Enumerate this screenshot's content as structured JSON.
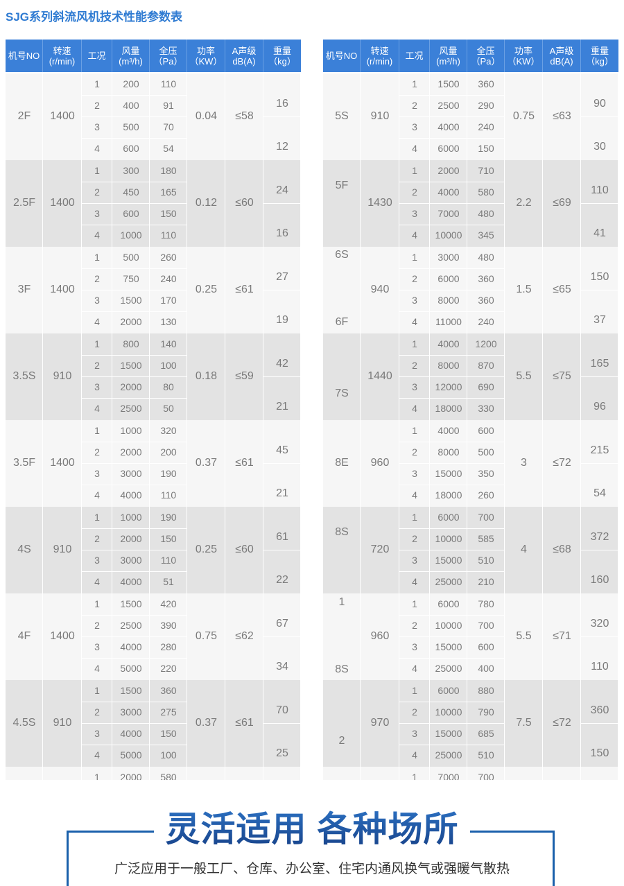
{
  "title": "SJG系列斜流风机技术性能参数表",
  "headers": [
    "机号NO",
    "转速\n(r/min)",
    "工况",
    "风量\n(m³/h)",
    "全压\n（Pa）",
    "功率\n（KW）",
    "A声级\ndB(A)",
    "重量\n（kg）"
  ],
  "colors": {
    "header": "#3b80d8",
    "title": "#2f7bd2",
    "row_light": "#f6f6f6",
    "row_dark": "#e3e3e3",
    "accent": "#1a60ab"
  },
  "left_table": [
    {
      "model": [
        "2F"
      ],
      "rpm": "1400",
      "rows": [
        [
          "1",
          "200",
          "110"
        ],
        [
          "2",
          "400",
          "91"
        ],
        [
          "3",
          "500",
          "70"
        ],
        [
          "4",
          "600",
          "54"
        ]
      ],
      "power": "0.04",
      "noise": "≤58",
      "weight": [
        "16",
        "12"
      ]
    },
    {
      "model": [
        "2.5F"
      ],
      "rpm": "1400",
      "rows": [
        [
          "1",
          "300",
          "180"
        ],
        [
          "2",
          "450",
          "165"
        ],
        [
          "3",
          "600",
          "150"
        ],
        [
          "4",
          "1000",
          "110"
        ]
      ],
      "power": "0.12",
      "noise": "≤60",
      "weight": [
        "24",
        "16"
      ]
    },
    {
      "model": [
        "3F"
      ],
      "rpm": "1400",
      "rows": [
        [
          "1",
          "500",
          "260"
        ],
        [
          "2",
          "750",
          "240"
        ],
        [
          "3",
          "1500",
          "170"
        ],
        [
          "4",
          "2000",
          "130"
        ]
      ],
      "power": "0.25",
      "noise": "≤61",
      "weight": [
        "27",
        "19"
      ]
    },
    {
      "model": [
        "3.5S"
      ],
      "rpm": "910",
      "rows": [
        [
          "1",
          "800",
          "140"
        ],
        [
          "2",
          "1500",
          "100"
        ],
        [
          "3",
          "2000",
          "80"
        ],
        [
          "4",
          "2500",
          "50"
        ]
      ],
      "power": "0.18",
      "noise": "≤59",
      "weight": [
        "42",
        "21"
      ]
    },
    {
      "model": [
        "3.5F"
      ],
      "rpm": "1400",
      "rows": [
        [
          "1",
          "1000",
          "320"
        ],
        [
          "2",
          "2000",
          "200"
        ],
        [
          "3",
          "3000",
          "190"
        ],
        [
          "4",
          "4000",
          "110"
        ]
      ],
      "power": "0.37",
      "noise": "≤61",
      "weight": [
        "45",
        "21"
      ]
    },
    {
      "model": [
        "4S"
      ],
      "rpm": "910",
      "rows": [
        [
          "1",
          "1000",
          "190"
        ],
        [
          "2",
          "2000",
          "150"
        ],
        [
          "3",
          "3000",
          "110"
        ],
        [
          "4",
          "4000",
          "51"
        ]
      ],
      "power": "0.25",
      "noise": "≤60",
      "weight": [
        "61",
        "22"
      ]
    },
    {
      "model": [
        "4F"
      ],
      "rpm": "1400",
      "rows": [
        [
          "1",
          "1500",
          "420"
        ],
        [
          "2",
          "2500",
          "390"
        ],
        [
          "3",
          "4000",
          "280"
        ],
        [
          "4",
          "5000",
          "220"
        ]
      ],
      "power": "0.75",
      "noise": "≤62",
      "weight": [
        "67",
        "34"
      ]
    },
    {
      "model": [
        "4.5S"
      ],
      "rpm": "910",
      "rows": [
        [
          "1",
          "1500",
          "360"
        ],
        [
          "2",
          "3000",
          "275"
        ],
        [
          "3",
          "4000",
          "150"
        ],
        [
          "4",
          "5000",
          "100"
        ]
      ],
      "power": "0.37",
      "noise": "≤61",
      "weight": [
        "70",
        "25"
      ]
    },
    {
      "model": [],
      "rpm": "",
      "rows": [
        [
          "1",
          "2000",
          "580"
        ]
      ],
      "power": "",
      "noise": "",
      "weight": []
    }
  ],
  "right_table": [
    {
      "model": [
        "5S"
      ],
      "rpm": "910",
      "rows": [
        [
          "1",
          "1500",
          "360"
        ],
        [
          "2",
          "2500",
          "290"
        ],
        [
          "3",
          "4000",
          "240"
        ],
        [
          "4",
          "6000",
          "150"
        ]
      ],
      "power": "0.75",
      "noise": "≤63",
      "weight": [
        "90",
        "30"
      ]
    },
    {
      "model": [
        "5F"
      ],
      "rpm": "1430",
      "rows": [
        [
          "1",
          "2000",
          "710"
        ],
        [
          "2",
          "4000",
          "580"
        ],
        [
          "3",
          "7000",
          "480"
        ],
        [
          "4",
          "10000",
          "345"
        ]
      ],
      "power": "2.2",
      "noise": "≤69",
      "weight": [
        "110",
        "41"
      ]
    },
    {
      "model": [
        "6S",
        "6F"
      ],
      "rpm": "940",
      "rows": [
        [
          "1",
          "3000",
          "480"
        ],
        [
          "2",
          "6000",
          "360"
        ],
        [
          "3",
          "8000",
          "360"
        ],
        [
          "4",
          "11000",
          "240"
        ]
      ],
      "power": "1.5",
      "noise": "≤65",
      "weight": [
        "150",
        "37"
      ]
    },
    {
      "model": [
        "7S"
      ],
      "rpm": "1440",
      "rows": [
        [
          "1",
          "4000",
          "1200"
        ],
        [
          "2",
          "8000",
          "870"
        ],
        [
          "3",
          "12000",
          "690"
        ],
        [
          "4",
          "18000",
          "330"
        ]
      ],
      "power": "5.5",
      "noise": "≤75",
      "weight": [
        "165",
        "96"
      ]
    },
    {
      "model": [
        "8E"
      ],
      "rpm": "960",
      "rows": [
        [
          "1",
          "4000",
          "600"
        ],
        [
          "2",
          "8000",
          "500"
        ],
        [
          "3",
          "15000",
          "350"
        ],
        [
          "4",
          "18000",
          "260"
        ]
      ],
      "power": "3",
      "noise": "≤72",
      "weight": [
        "215",
        "54"
      ]
    },
    {
      "model": [
        "8S"
      ],
      "rpm": "720",
      "rows": [
        [
          "1",
          "6000",
          "700"
        ],
        [
          "2",
          "10000",
          "585"
        ],
        [
          "3",
          "15000",
          "510"
        ],
        [
          "4",
          "25000",
          "210"
        ]
      ],
      "power": "4",
      "noise": "≤68",
      "weight": [
        "372",
        "160"
      ]
    },
    {
      "model": [
        "1",
        "8S"
      ],
      "rpm": "960",
      "rows": [
        [
          "1",
          "6000",
          "780"
        ],
        [
          "2",
          "10000",
          "700"
        ],
        [
          "3",
          "15000",
          "600"
        ],
        [
          "4",
          "25000",
          "400"
        ]
      ],
      "power": "5.5",
      "noise": "≤71",
      "weight": [
        "320",
        "110"
      ]
    },
    {
      "model": [
        "2"
      ],
      "rpm": "970",
      "rows": [
        [
          "1",
          "6000",
          "880"
        ],
        [
          "2",
          "10000",
          "790"
        ],
        [
          "3",
          "15000",
          "685"
        ],
        [
          "4",
          "25000",
          "510"
        ]
      ],
      "power": "7.5",
      "noise": "≤72",
      "weight": [
        "360",
        "150"
      ]
    },
    {
      "model": [],
      "rpm": "",
      "rows": [
        [
          "1",
          "7000",
          "700"
        ]
      ],
      "power": "",
      "noise": "",
      "weight": []
    }
  ],
  "banner": {
    "heading": "灵活适用 各种场所",
    "description": "广泛应用于一般工厂、仓库、办公室、住宅内通风换气或强暖气散热"
  }
}
